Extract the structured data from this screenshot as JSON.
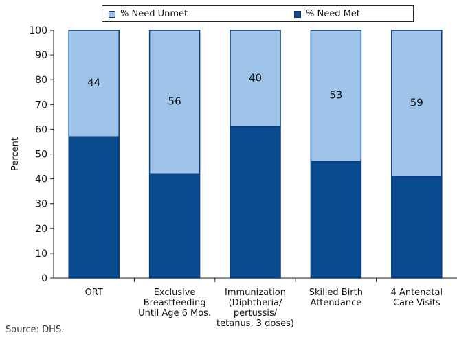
{
  "chart_data": {
    "type": "bar",
    "stacked": true,
    "categories": [
      "ORT",
      "Exclusive Breastfeeding Until Age 6 Mos.",
      "Immunization (Diphtheria/ pertussis/ tetanus, 3 doses)",
      "Skilled Birth Attendance",
      "4 Antenatal Care Visits"
    ],
    "category_lines": [
      [
        "ORT"
      ],
      [
        "Exclusive",
        "Breastfeeding",
        "Until Age 6 Mos."
      ],
      [
        "Immunization",
        "(Diphtheria/",
        "pertussis/",
        "tetanus, 3 doses)"
      ],
      [
        "Skilled Birth",
        "Attendance"
      ],
      [
        "4 Antenatal",
        "Care Visits"
      ]
    ],
    "series": [
      {
        "name": "% Need Met",
        "values": [
          57,
          42,
          61,
          47,
          41
        ],
        "color": "#0a4a8f"
      },
      {
        "name": "% Need Unmet",
        "values": [
          44,
          56,
          40,
          53,
          59
        ],
        "color": "#9ec4ea"
      }
    ],
    "data_labels": [
      "44",
      "56",
      "40",
      "53",
      "59"
    ],
    "ylabel": "Percent",
    "ylim": [
      0,
      100
    ],
    "yticks": [
      0,
      10,
      20,
      30,
      40,
      50,
      60,
      70,
      80,
      90,
      100
    ],
    "grid": false,
    "legend_position": "top"
  },
  "legend": {
    "unmet_label": "% Need Unmet",
    "met_label": "% Need Met"
  },
  "source": "Source: DHS."
}
